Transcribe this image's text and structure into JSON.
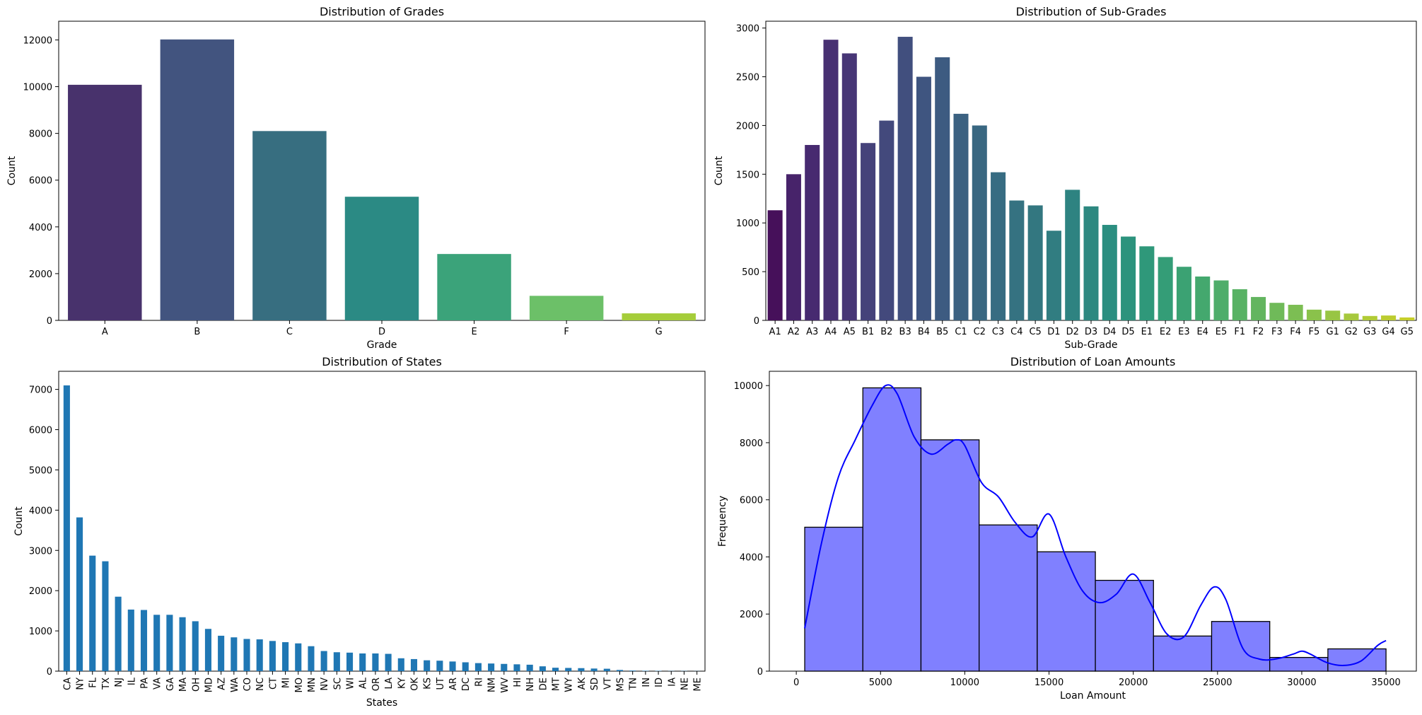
{
  "chart_data": [
    {
      "type": "bar",
      "title": "Distribution of Grades",
      "xlabel": "Grade",
      "ylabel": "Count",
      "categories": [
        "A",
        "B",
        "C",
        "D",
        "E",
        "F",
        "G"
      ],
      "values": [
        10080,
        12020,
        8100,
        5290,
        2840,
        1050,
        300
      ],
      "ylim": [
        0,
        12800
      ],
      "yticks": [
        0,
        2000,
        4000,
        6000,
        8000,
        10000,
        12000
      ],
      "colors": [
        "#48326c",
        "#42547f",
        "#376e80",
        "#2b8a84",
        "#3ba37a",
        "#6cc068",
        "#a5cd3a"
      ],
      "grid": false
    },
    {
      "type": "bar",
      "title": "Distribution of Sub-Grades",
      "xlabel": "Sub-Grade",
      "ylabel": "Count",
      "categories": [
        "A1",
        "A2",
        "A3",
        "A4",
        "A5",
        "B1",
        "B2",
        "B3",
        "B4",
        "B5",
        "C1",
        "C2",
        "C3",
        "C4",
        "C5",
        "D1",
        "D2",
        "D3",
        "D4",
        "D5",
        "E1",
        "E2",
        "E3",
        "E4",
        "E5",
        "F1",
        "F2",
        "F3",
        "F4",
        "F5",
        "G1",
        "G2",
        "G3",
        "G4",
        "G5"
      ],
      "values": [
        1130,
        1500,
        1800,
        2880,
        2740,
        1820,
        2050,
        2910,
        2500,
        2700,
        2120,
        2000,
        1520,
        1230,
        1180,
        920,
        1340,
        1170,
        980,
        860,
        760,
        650,
        550,
        450,
        410,
        320,
        240,
        180,
        160,
        110,
        100,
        70,
        45,
        50,
        30
      ],
      "ylim": [
        0,
        3070
      ],
      "yticks": [
        0,
        500,
        1000,
        1500,
        2000,
        2500,
        3000
      ],
      "colors": [
        "#46105a",
        "#47236a",
        "#472a70",
        "#473072",
        "#473676",
        "#45427a",
        "#43497c",
        "#414f7e",
        "#3f5580",
        "#3d5b81",
        "#3b6181",
        "#396781",
        "#376c82",
        "#357281",
        "#337780",
        "#317d81",
        "#2e8381",
        "#2d8880",
        "#2b8e80",
        "#2c937d",
        "#2f987a",
        "#349d77",
        "#3ba273",
        "#44a86e",
        "#4ead6a",
        "#58b264",
        "#63b55f",
        "#6fba59",
        "#7cbe53",
        "#8ac24b",
        "#98c544",
        "#a6c83d",
        "#b1cb36",
        "#bccc30",
        "#c6ce2a"
      ],
      "grid": false
    },
    {
      "type": "bar",
      "title": "Distribution of States",
      "xlabel": "States",
      "ylabel": "Count",
      "categories": [
        "CA",
        "NY",
        "FL",
        "TX",
        "NJ",
        "IL",
        "PA",
        "VA",
        "GA",
        "MA",
        "OH",
        "MD",
        "AZ",
        "WA",
        "CO",
        "NC",
        "CT",
        "MI",
        "MO",
        "MN",
        "NV",
        "SC",
        "WI",
        "AL",
        "OR",
        "LA",
        "KY",
        "OK",
        "KS",
        "UT",
        "AR",
        "DC",
        "RI",
        "NM",
        "WV",
        "HI",
        "NH",
        "DE",
        "MT",
        "WY",
        "AK",
        "SD",
        "VT",
        "MS",
        "TN",
        "IN",
        "ID",
        "IA",
        "NE",
        "ME"
      ],
      "values": [
        7100,
        3820,
        2870,
        2730,
        1850,
        1530,
        1520,
        1400,
        1400,
        1340,
        1240,
        1050,
        880,
        840,
        800,
        790,
        750,
        720,
        690,
        620,
        500,
        470,
        460,
        440,
        440,
        430,
        320,
        300,
        270,
        260,
        240,
        220,
        200,
        190,
        180,
        170,
        160,
        120,
        85,
        80,
        75,
        65,
        60,
        30,
        15,
        10,
        8,
        5,
        5,
        3
      ],
      "ylim": [
        0,
        7450
      ],
      "yticks": [
        0,
        1000,
        2000,
        3000,
        4000,
        5000,
        6000,
        7000
      ],
      "color": "#1f77b4",
      "grid": false
    },
    {
      "type": "histogram",
      "title": "Distribution of Loan Amounts",
      "xlabel": "Loan Amount",
      "ylabel": "Frequency",
      "bin_edges": [
        500,
        3950,
        7400,
        10850,
        14300,
        17750,
        21200,
        24650,
        28100,
        31550,
        35000
      ],
      "counts": [
        5040,
        9920,
        8100,
        5120,
        4180,
        3180,
        1230,
        1740,
        480,
        780
      ],
      "kde": {
        "x": [
          500,
          1500,
          2500,
          3500,
          4500,
          5300,
          6000,
          7000,
          8000,
          9000,
          9500,
          10000,
          11000,
          12000,
          13000,
          14000,
          15000,
          16000,
          17000,
          18000,
          19000,
          20000,
          21000,
          22000,
          23000,
          24000,
          24800,
          25500,
          26500,
          27500,
          28500,
          29500,
          30000,
          30500,
          31500,
          32500,
          33500,
          34500,
          35000
        ],
        "y": [
          1500,
          4500,
          6800,
          8100,
          9300,
          10000,
          9700,
          8200,
          7600,
          7950,
          8100,
          7900,
          6600,
          6100,
          5200,
          4700,
          5500,
          4000,
          2800,
          2400,
          2700,
          3400,
          2400,
          1300,
          1200,
          2300,
          2950,
          2500,
          800,
          420,
          430,
          600,
          700,
          600,
          300,
          200,
          350,
          900,
          1070
        ]
      },
      "xlim": [
        -1600,
        36800
      ],
      "ylim": [
        0,
        10500
      ],
      "xticks": [
        0,
        5000,
        10000,
        15000,
        20000,
        25000,
        30000,
        35000
      ],
      "yticks": [
        0,
        2000,
        4000,
        6000,
        8000,
        10000
      ],
      "bar_color": "#8080ff",
      "edge_color": "#000000",
      "kde_color": "#0000ff",
      "grid": false
    }
  ]
}
